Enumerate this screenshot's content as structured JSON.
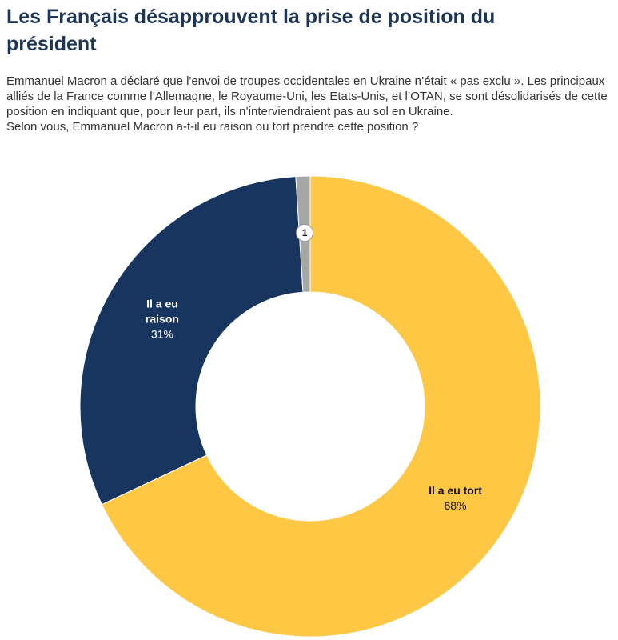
{
  "chart_data": {
    "type": "donut",
    "title": "Les Français désapprouvent la prise de position du président",
    "subtitle": [
      "Emmanuel Macron a déclaré que l'envoi de troupes occidentales en Ukraine n’était « pas exclu ». Les principaux alliés de la France comme l’Allemagne, le Royaume-Uni, les Etats-Unis, et l’OTAN, se sont désolidarisés de cette position en indiquant que, pour leur part, ils n’interviendraient pas au sol en Ukraine.",
      "Selon vous, Emmanuel Macron a-t-il eu raison ou tort prendre cette position ?"
    ],
    "categories": [
      "Il a eu tort",
      "Il a eu raison",
      null
    ],
    "values": [
      68,
      31,
      1
    ],
    "value_labels": [
      "68%",
      "31%",
      "1"
    ],
    "colors": [
      "#fec845",
      "#17355e",
      "#a6a6a6"
    ]
  }
}
